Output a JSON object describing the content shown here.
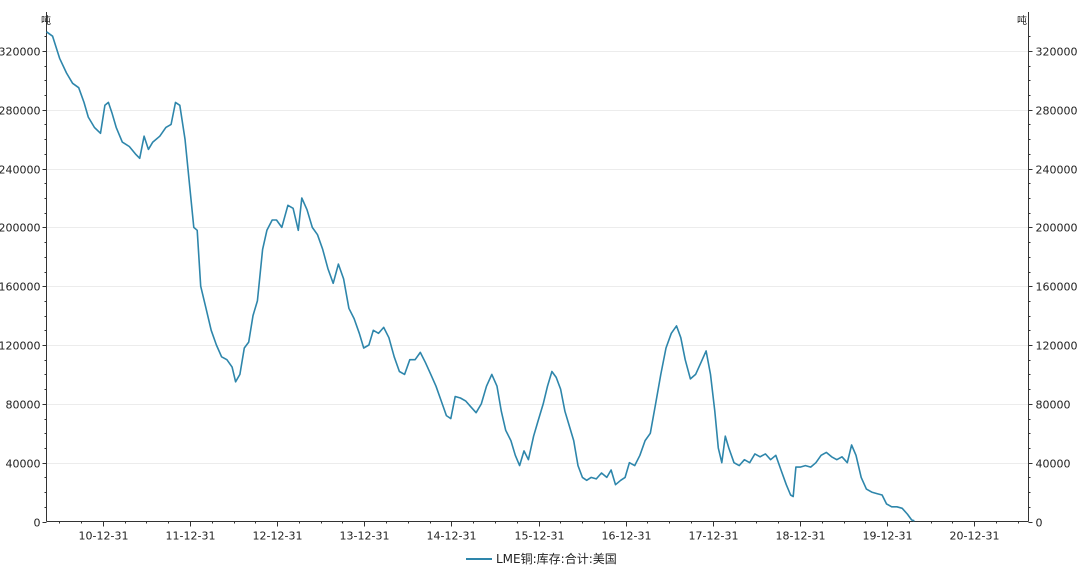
{
  "chart_data": {
    "type": "line",
    "y_unit_left": "吨",
    "y_unit_right": "吨",
    "ylim": [
      0,
      340000
    ],
    "y_ticks": [
      0,
      40000,
      80000,
      120000,
      160000,
      200000,
      240000,
      280000,
      320000
    ],
    "y_tick_labels": [
      "0",
      "40000",
      "80000",
      "120000",
      "160000",
      "200000",
      "240000",
      "280000",
      "320000"
    ],
    "x_ticks": [
      2010.997,
      2011.997,
      2012.997,
      2013.997,
      2014.997,
      2015.997,
      2016.997,
      2017.997,
      2018.997,
      2019.997,
      2020.997
    ],
    "x_tick_labels": [
      "10-12-31",
      "11-12-31",
      "12-12-31",
      "13-12-31",
      "14-12-31",
      "15-12-31",
      "16-12-31",
      "17-12-31",
      "18-12-31",
      "19-12-31",
      "20-12-31"
    ],
    "xlim": [
      2010.35,
      2021.62
    ],
    "grid": true,
    "legend_position": "bottom-center",
    "line_color": "#2e86ab",
    "series": [
      {
        "name": "LME铜:库存:合计:美国",
        "points": [
          [
            2010.35,
            333000
          ],
          [
            2010.42,
            330000
          ],
          [
            2010.5,
            315000
          ],
          [
            2010.58,
            305000
          ],
          [
            2010.65,
            298000
          ],
          [
            2010.72,
            295000
          ],
          [
            2010.78,
            285000
          ],
          [
            2010.83,
            275000
          ],
          [
            2010.9,
            268000
          ],
          [
            2010.97,
            264000
          ],
          [
            2011.02,
            283000
          ],
          [
            2011.06,
            285000
          ],
          [
            2011.1,
            278000
          ],
          [
            2011.15,
            268000
          ],
          [
            2011.22,
            258000
          ],
          [
            2011.3,
            255000
          ],
          [
            2011.37,
            250000
          ],
          [
            2011.42,
            247000
          ],
          [
            2011.47,
            262000
          ],
          [
            2011.52,
            253000
          ],
          [
            2011.57,
            258000
          ],
          [
            2011.65,
            262000
          ],
          [
            2011.72,
            268000
          ],
          [
            2011.78,
            270000
          ],
          [
            2011.83,
            285000
          ],
          [
            2011.88,
            283000
          ],
          [
            2011.94,
            260000
          ],
          [
            2011.99,
            230000
          ],
          [
            2012.04,
            200000
          ],
          [
            2012.08,
            198000
          ],
          [
            2012.12,
            160000
          ],
          [
            2012.18,
            145000
          ],
          [
            2012.24,
            130000
          ],
          [
            2012.3,
            120000
          ],
          [
            2012.36,
            112000
          ],
          [
            2012.42,
            110000
          ],
          [
            2012.48,
            105000
          ],
          [
            2012.52,
            95000
          ],
          [
            2012.57,
            100000
          ],
          [
            2012.62,
            118000
          ],
          [
            2012.67,
            122000
          ],
          [
            2012.72,
            140000
          ],
          [
            2012.77,
            150000
          ],
          [
            2012.83,
            185000
          ],
          [
            2012.88,
            198000
          ],
          [
            2012.94,
            205000
          ],
          [
            2012.99,
            205000
          ],
          [
            2013.05,
            200000
          ],
          [
            2013.12,
            215000
          ],
          [
            2013.18,
            213000
          ],
          [
            2013.24,
            198000
          ],
          [
            2013.28,
            220000
          ],
          [
            2013.34,
            212000
          ],
          [
            2013.4,
            200000
          ],
          [
            2013.46,
            195000
          ],
          [
            2013.52,
            185000
          ],
          [
            2013.58,
            172000
          ],
          [
            2013.64,
            162000
          ],
          [
            2013.7,
            175000
          ],
          [
            2013.76,
            165000
          ],
          [
            2013.82,
            145000
          ],
          [
            2013.88,
            138000
          ],
          [
            2013.94,
            128000
          ],
          [
            2013.99,
            118000
          ],
          [
            2014.05,
            120000
          ],
          [
            2014.1,
            130000
          ],
          [
            2014.16,
            128000
          ],
          [
            2014.22,
            132000
          ],
          [
            2014.28,
            125000
          ],
          [
            2014.34,
            112000
          ],
          [
            2014.4,
            102000
          ],
          [
            2014.46,
            100000
          ],
          [
            2014.52,
            110000
          ],
          [
            2014.58,
            110000
          ],
          [
            2014.64,
            115000
          ],
          [
            2014.7,
            108000
          ],
          [
            2014.76,
            100000
          ],
          [
            2014.82,
            92000
          ],
          [
            2014.88,
            82000
          ],
          [
            2014.94,
            72000
          ],
          [
            2014.99,
            70000
          ],
          [
            2015.04,
            85000
          ],
          [
            2015.1,
            84000
          ],
          [
            2015.16,
            82000
          ],
          [
            2015.22,
            78000
          ],
          [
            2015.28,
            74000
          ],
          [
            2015.34,
            80000
          ],
          [
            2015.4,
            92000
          ],
          [
            2015.46,
            100000
          ],
          [
            2015.52,
            92000
          ],
          [
            2015.57,
            75000
          ],
          [
            2015.62,
            62000
          ],
          [
            2015.68,
            55000
          ],
          [
            2015.73,
            45000
          ],
          [
            2015.78,
            38000
          ],
          [
            2015.83,
            48000
          ],
          [
            2015.88,
            42000
          ],
          [
            2015.94,
            58000
          ],
          [
            2015.99,
            68000
          ],
          [
            2016.05,
            80000
          ],
          [
            2016.1,
            92000
          ],
          [
            2016.15,
            102000
          ],
          [
            2016.2,
            98000
          ],
          [
            2016.25,
            90000
          ],
          [
            2016.3,
            75000
          ],
          [
            2016.35,
            65000
          ],
          [
            2016.4,
            55000
          ],
          [
            2016.45,
            38000
          ],
          [
            2016.5,
            30000
          ],
          [
            2016.55,
            28000
          ],
          [
            2016.6,
            30000
          ],
          [
            2016.66,
            29000
          ],
          [
            2016.72,
            33000
          ],
          [
            2016.78,
            30000
          ],
          [
            2016.83,
            35000
          ],
          [
            2016.88,
            25000
          ],
          [
            2016.94,
            28000
          ],
          [
            2016.99,
            30000
          ],
          [
            2017.04,
            40000
          ],
          [
            2017.1,
            38000
          ],
          [
            2017.16,
            45000
          ],
          [
            2017.22,
            55000
          ],
          [
            2017.28,
            60000
          ],
          [
            2017.34,
            80000
          ],
          [
            2017.4,
            100000
          ],
          [
            2017.46,
            118000
          ],
          [
            2017.52,
            128000
          ],
          [
            2017.58,
            133000
          ],
          [
            2017.63,
            125000
          ],
          [
            2017.68,
            110000
          ],
          [
            2017.74,
            97000
          ],
          [
            2017.8,
            100000
          ],
          [
            2017.86,
            108000
          ],
          [
            2017.92,
            116000
          ],
          [
            2017.97,
            100000
          ],
          [
            2018.02,
            75000
          ],
          [
            2018.06,
            50000
          ],
          [
            2018.1,
            40000
          ],
          [
            2018.14,
            58000
          ],
          [
            2018.18,
            50000
          ],
          [
            2018.24,
            40000
          ],
          [
            2018.3,
            38000
          ],
          [
            2018.36,
            42000
          ],
          [
            2018.42,
            40000
          ],
          [
            2018.48,
            46000
          ],
          [
            2018.54,
            44000
          ],
          [
            2018.6,
            46000
          ],
          [
            2018.66,
            42000
          ],
          [
            2018.72,
            45000
          ],
          [
            2018.78,
            35000
          ],
          [
            2018.84,
            25000
          ],
          [
            2018.89,
            18000
          ],
          [
            2018.92,
            17000
          ],
          [
            2018.95,
            37000
          ],
          [
            2019.0,
            37000
          ],
          [
            2019.06,
            38000
          ],
          [
            2019.12,
            37000
          ],
          [
            2019.18,
            40000
          ],
          [
            2019.24,
            45000
          ],
          [
            2019.3,
            47000
          ],
          [
            2019.36,
            44000
          ],
          [
            2019.42,
            42000
          ],
          [
            2019.48,
            44000
          ],
          [
            2019.54,
            40000
          ],
          [
            2019.59,
            52000
          ],
          [
            2019.64,
            45000
          ],
          [
            2019.7,
            30000
          ],
          [
            2019.76,
            22000
          ],
          [
            2019.82,
            20000
          ],
          [
            2019.88,
            19000
          ],
          [
            2019.94,
            18000
          ],
          [
            2019.99,
            12000
          ],
          [
            2020.05,
            10000
          ],
          [
            2020.11,
            10000
          ],
          [
            2020.17,
            9000
          ],
          [
            2020.23,
            5000
          ],
          [
            2020.28,
            1000
          ],
          [
            2020.31,
            500
          ]
        ]
      }
    ]
  }
}
